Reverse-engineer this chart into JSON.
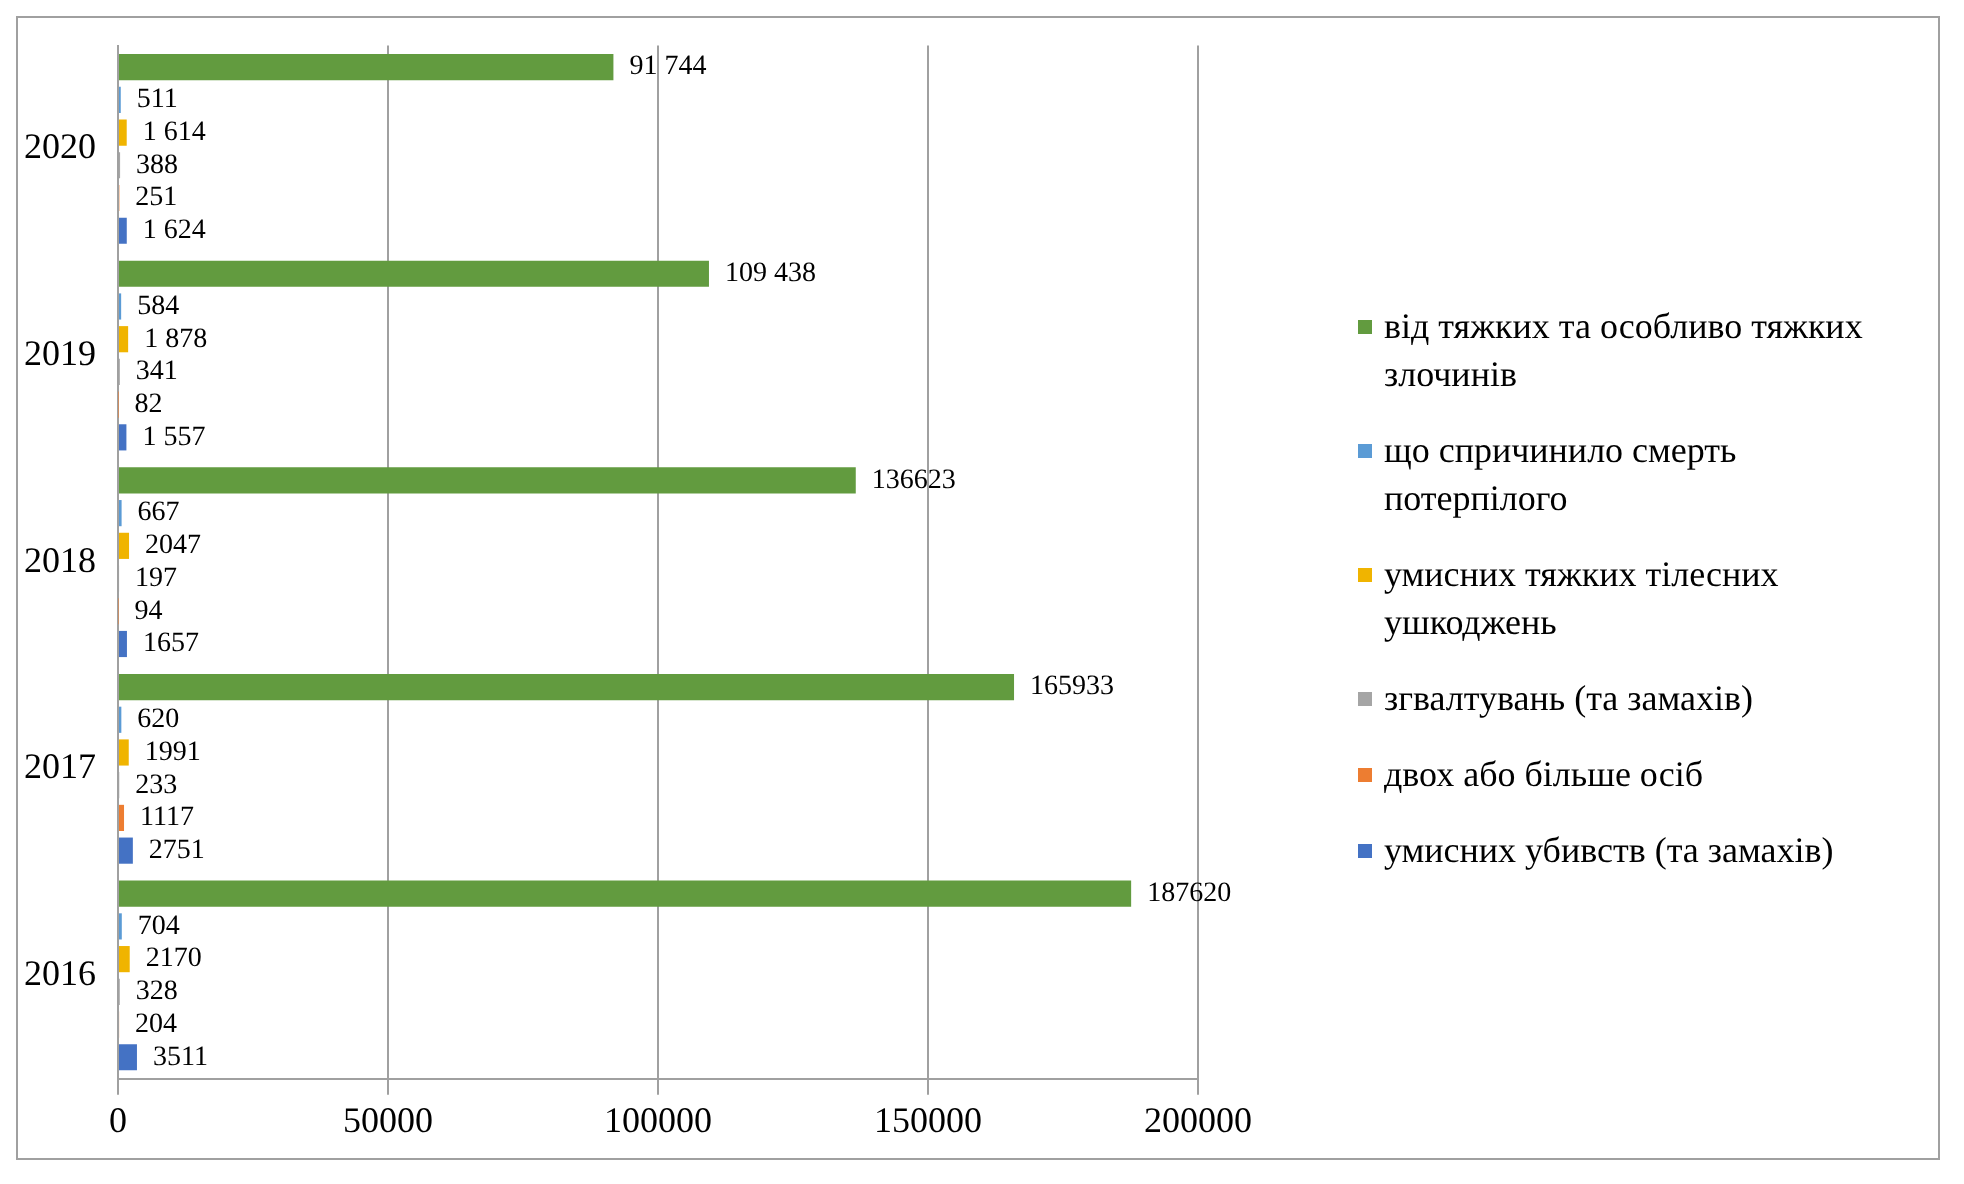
{
  "chart_data": {
    "type": "bar",
    "orientation": "horizontal",
    "categories": [
      "2020",
      "2019",
      "2018",
      "2017",
      "2016"
    ],
    "series": [
      {
        "name": "від тяжких та особливо тяжких злочинів",
        "color": "#629b3f",
        "values": [
          91744,
          109438,
          136623,
          165933,
          187620
        ],
        "value_labels": [
          "91 744",
          "109 438",
          "136623",
          "165933",
          "187620"
        ]
      },
      {
        "name": "що спричинило смерть потерпілого",
        "color": "#5b9bd5",
        "values": [
          511,
          584,
          667,
          620,
          704
        ],
        "value_labels": [
          "511",
          "584",
          "667",
          "620",
          "704"
        ]
      },
      {
        "name": "умисних тяжких тілесних ушкоджень",
        "color": "#f0b400",
        "values": [
          1614,
          1878,
          2047,
          1991,
          2170
        ],
        "value_labels": [
          "1 614",
          "1 878",
          "2047",
          "1991",
          "2170"
        ]
      },
      {
        "name": "згвалтувань (та замахів)",
        "color": "#a5a5a5",
        "values": [
          388,
          341,
          197,
          233,
          328
        ],
        "value_labels": [
          "388",
          "341",
          "197",
          "233",
          "328"
        ]
      },
      {
        "name": "двох або більше осіб",
        "color": "#ed7d31",
        "values": [
          251,
          82,
          94,
          1117,
          204
        ],
        "value_labels": [
          "251",
          "82",
          "94",
          "1117",
          "204"
        ]
      },
      {
        "name": "умисних убивств (та замахів)",
        "color": "#4472c4",
        "values": [
          1624,
          1557,
          1657,
          2751,
          3511
        ],
        "value_labels": [
          "1 624",
          "1 557",
          "1657",
          "2751",
          "3511"
        ]
      }
    ],
    "xlim": [
      0,
      200000
    ],
    "xticks": [
      0,
      50000,
      100000,
      150000,
      200000
    ],
    "grid": "x",
    "legend": "right"
  }
}
